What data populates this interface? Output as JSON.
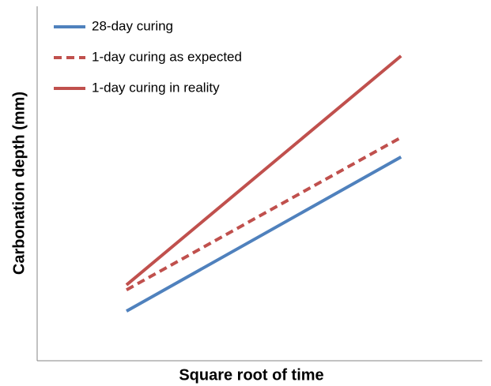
{
  "chart_data": {
    "type": "line",
    "x_label": "Square root of time",
    "y_label": "Carbonation depth (mm)",
    "x": [
      20,
      82
    ],
    "xlim": [
      0,
      100
    ],
    "ylim": [
      0,
      100
    ],
    "legend": "top-left",
    "series": [
      {
        "name": "28-day curing",
        "color": "#4f81bd",
        "style": "solid",
        "values": [
          14,
          57.5
        ]
      },
      {
        "name": "1-day curing as expected",
        "color": "#c0504d",
        "style": "dashed",
        "values": [
          20,
          63
        ]
      },
      {
        "name": "1-day curing in reality",
        "color": "#c0504d",
        "style": "solid",
        "values": [
          21.4,
          86
        ]
      }
    ]
  }
}
